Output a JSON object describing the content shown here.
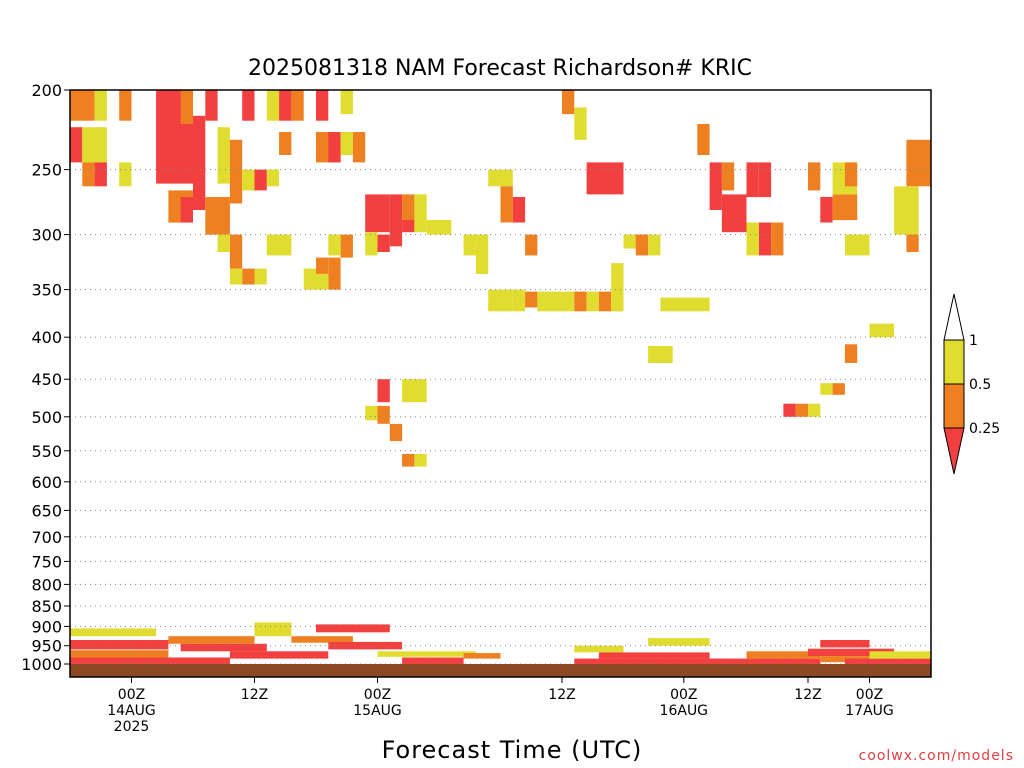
{
  "chart_data": {
    "type": "heatmap",
    "title": "2025081318 NAM Forecast Richardson# KRIC",
    "xlabel": "Forecast Time (UTC)",
    "ylabel": "",
    "credit": "coolwx.com/models",
    "y_scale": "log-pressure",
    "y_ticks": [
      200,
      250,
      300,
      350,
      400,
      450,
      500,
      550,
      600,
      650,
      700,
      750,
      800,
      850,
      900,
      950,
      1000
    ],
    "ylim": [
      200,
      1000
    ],
    "x_hours_range": [
      -5,
      65
    ],
    "x_ticks": [
      {
        "hour": 0,
        "lines": [
          "00Z",
          "14AUG",
          "2025"
        ]
      },
      {
        "hour": 10,
        "lines": [
          "12Z"
        ]
      },
      {
        "hour": 20,
        "lines": [
          "00Z",
          "15AUG"
        ]
      },
      {
        "hour": 35,
        "lines": [
          "12Z"
        ]
      },
      {
        "hour": 44.9,
        "lines": [
          "00Z",
          "16AUG"
        ]
      },
      {
        "hour": 55,
        "lines": [
          "12Z"
        ]
      },
      {
        "hour": 60,
        "lines": [
          "00Z",
          "17AUG"
        ]
      }
    ],
    "grid": "dotted horizontal lines",
    "legend": {
      "placement": "right",
      "levels": [
        "1",
        "0.5",
        "0.25"
      ],
      "bins": [
        {
          "range": "> 1",
          "color": "#ffffff"
        },
        {
          "range": "0.5 - 1",
          "color": "#e0dc30"
        },
        {
          "range": "0.25 - 0.5",
          "color": "#ee8022"
        },
        {
          "range": "< 0.25",
          "color": "#f24040"
        }
      ]
    },
    "cells": [
      {
        "t0": -5,
        "t1": -3,
        "p0": 200,
        "p1": 218,
        "bin": "orange"
      },
      {
        "t0": -3,
        "t1": -2,
        "p0": 200,
        "p1": 218,
        "bin": "yellow"
      },
      {
        "t0": -1,
        "t1": 0,
        "p0": 200,
        "p1": 218,
        "bin": "orange"
      },
      {
        "t0": 2,
        "t1": 5,
        "p0": 200,
        "p1": 260,
        "bin": "red"
      },
      {
        "t0": 4,
        "t1": 5,
        "p0": 200,
        "p1": 220,
        "bin": "orange"
      },
      {
        "t0": 5,
        "t1": 6,
        "p0": 215,
        "p1": 280,
        "bin": "red"
      },
      {
        "t0": 6,
        "t1": 7,
        "p0": 200,
        "p1": 218,
        "bin": "red"
      },
      {
        "t0": 7,
        "t1": 8,
        "p0": 222,
        "p1": 260,
        "bin": "yellow"
      },
      {
        "t0": 8,
        "t1": 9,
        "p0": 230,
        "p1": 275,
        "bin": "orange"
      },
      {
        "t0": 9,
        "t1": 10,
        "p0": 200,
        "p1": 218,
        "bin": "red"
      },
      {
        "t0": 11,
        "t1": 12,
        "p0": 200,
        "p1": 218,
        "bin": "yellow"
      },
      {
        "t0": 12,
        "t1": 13,
        "p0": 200,
        "p1": 218,
        "bin": "red"
      },
      {
        "t0": 13,
        "t1": 14,
        "p0": 200,
        "p1": 218,
        "bin": "orange"
      },
      {
        "t0": 15,
        "t1": 16,
        "p0": 200,
        "p1": 218,
        "bin": "red"
      },
      {
        "t0": 17,
        "t1": 18,
        "p0": 200,
        "p1": 214,
        "bin": "yellow"
      },
      {
        "t0": -5,
        "t1": -4,
        "p0": 222,
        "p1": 245,
        "bin": "red"
      },
      {
        "t0": -4,
        "t1": -2,
        "p0": 222,
        "p1": 245,
        "bin": "yellow"
      },
      {
        "t0": -4,
        "t1": -3,
        "p0": 245,
        "p1": 262,
        "bin": "orange"
      },
      {
        "t0": -3,
        "t1": -2,
        "p0": 245,
        "p1": 262,
        "bin": "red"
      },
      {
        "t0": -1,
        "t1": 0,
        "p0": 245,
        "p1": 262,
        "bin": "yellow"
      },
      {
        "t0": 3,
        "t1": 5,
        "p0": 265,
        "p1": 290,
        "bin": "orange"
      },
      {
        "t0": 4,
        "t1": 5,
        "p0": 270,
        "p1": 290,
        "bin": "red"
      },
      {
        "t0": 6,
        "t1": 8,
        "p0": 270,
        "p1": 300,
        "bin": "orange"
      },
      {
        "t0": 8,
        "t1": 9,
        "p0": 300,
        "p1": 330,
        "bin": "orange"
      },
      {
        "t0": 9,
        "t1": 10,
        "p0": 330,
        "p1": 345,
        "bin": "orange"
      },
      {
        "t0": 8,
        "t1": 9,
        "p0": 330,
        "p1": 345,
        "bin": "yellow"
      },
      {
        "t0": 10,
        "t1": 11,
        "p0": 330,
        "p1": 345,
        "bin": "yellow"
      },
      {
        "t0": 7,
        "t1": 8,
        "p0": 300,
        "p1": 315,
        "bin": "yellow"
      },
      {
        "t0": 10,
        "t1": 11,
        "p0": 250,
        "p1": 265,
        "bin": "red"
      },
      {
        "t0": 9,
        "t1": 10,
        "p0": 250,
        "p1": 265,
        "bin": "yellow"
      },
      {
        "t0": 11,
        "t1": 12,
        "p0": 250,
        "p1": 262,
        "bin": "yellow"
      },
      {
        "t0": 12,
        "t1": 13,
        "p0": 225,
        "p1": 240,
        "bin": "orange"
      },
      {
        "t0": 11,
        "t1": 13,
        "p0": 300,
        "p1": 318,
        "bin": "yellow"
      },
      {
        "t0": 14,
        "t1": 15,
        "p0": 330,
        "p1": 350,
        "bin": "yellow"
      },
      {
        "t0": 15,
        "t1": 16,
        "p0": 320,
        "p1": 335,
        "bin": "orange"
      },
      {
        "t0": 16,
        "t1": 17,
        "p0": 320,
        "p1": 350,
        "bin": "orange"
      },
      {
        "t0": 15,
        "t1": 16,
        "p0": 335,
        "p1": 350,
        "bin": "yellow"
      },
      {
        "t0": 15,
        "t1": 17,
        "p0": 225,
        "p1": 245,
        "bin": "orange"
      },
      {
        "t0": 16,
        "t1": 17,
        "p0": 225,
        "p1": 245,
        "bin": "red"
      },
      {
        "t0": 17,
        "t1": 18,
        "p0": 225,
        "p1": 240,
        "bin": "yellow"
      },
      {
        "t0": 18,
        "t1": 19,
        "p0": 225,
        "p1": 245,
        "bin": "orange"
      },
      {
        "t0": 17,
        "t1": 18,
        "p0": 300,
        "p1": 320,
        "bin": "orange"
      },
      {
        "t0": 16,
        "t1": 17,
        "p0": 300,
        "p1": 318,
        "bin": "yellow"
      },
      {
        "t0": 19,
        "t1": 21,
        "p0": 268,
        "p1": 298,
        "bin": "red"
      },
      {
        "t0": 21,
        "t1": 22,
        "p0": 268,
        "p1": 310,
        "bin": "red"
      },
      {
        "t0": 20,
        "t1": 21,
        "p0": 300,
        "p1": 315,
        "bin": "red"
      },
      {
        "t0": 22,
        "t1": 23,
        "p0": 268,
        "p1": 288,
        "bin": "orange"
      },
      {
        "t0": 22,
        "t1": 23,
        "p0": 288,
        "p1": 298,
        "bin": "red"
      },
      {
        "t0": 23,
        "t1": 24,
        "p0": 268,
        "p1": 298,
        "bin": "yellow"
      },
      {
        "t0": 19,
        "t1": 20,
        "p0": 298,
        "p1": 318,
        "bin": "yellow"
      },
      {
        "t0": 24,
        "t1": 26,
        "p0": 288,
        "p1": 300,
        "bin": "yellow"
      },
      {
        "t0": 27,
        "t1": 28,
        "p0": 300,
        "p1": 318,
        "bin": "yellow"
      },
      {
        "t0": 28,
        "t1": 29,
        "p0": 300,
        "p1": 335,
        "bin": "yellow"
      },
      {
        "t0": 29,
        "t1": 31,
        "p0": 250,
        "p1": 262,
        "bin": "yellow"
      },
      {
        "t0": 30,
        "t1": 31,
        "p0": 262,
        "p1": 290,
        "bin": "orange"
      },
      {
        "t0": 31,
        "t1": 32,
        "p0": 270,
        "p1": 290,
        "bin": "red"
      },
      {
        "t0": 32,
        "t1": 33,
        "p0": 300,
        "p1": 318,
        "bin": "orange"
      },
      {
        "t0": 29,
        "t1": 31,
        "p0": 350,
        "p1": 372,
        "bin": "yellow"
      },
      {
        "t0": 31,
        "t1": 32,
        "p0": 350,
        "p1": 372,
        "bin": "yellow"
      },
      {
        "t0": 32,
        "t1": 33,
        "p0": 352,
        "p1": 368,
        "bin": "orange"
      },
      {
        "t0": 33,
        "t1": 36,
        "p0": 352,
        "p1": 372,
        "bin": "yellow"
      },
      {
        "t0": 36,
        "t1": 37,
        "p0": 352,
        "p1": 372,
        "bin": "orange"
      },
      {
        "t0": 37,
        "t1": 38,
        "p0": 352,
        "p1": 372,
        "bin": "yellow"
      },
      {
        "t0": 38,
        "t1": 39,
        "p0": 352,
        "p1": 372,
        "bin": "orange"
      },
      {
        "t0": 39,
        "t1": 40,
        "p0": 325,
        "p1": 372,
        "bin": "yellow"
      },
      {
        "t0": 36,
        "t1": 37,
        "p0": 210,
        "p1": 230,
        "bin": "yellow"
      },
      {
        "t0": 35,
        "t1": 36,
        "p0": 200,
        "p1": 214,
        "bin": "orange"
      },
      {
        "t0": 37,
        "t1": 40,
        "p0": 245,
        "p1": 268,
        "bin": "red"
      },
      {
        "t0": 40,
        "t1": 42,
        "p0": 300,
        "p1": 312,
        "bin": "yellow"
      },
      {
        "t0": 41,
        "t1": 42,
        "p0": 300,
        "p1": 318,
        "bin": "orange"
      },
      {
        "t0": 42,
        "t1": 43,
        "p0": 300,
        "p1": 318,
        "bin": "yellow"
      },
      {
        "t0": 43,
        "t1": 47,
        "p0": 358,
        "p1": 372,
        "bin": "yellow"
      },
      {
        "t0": 46,
        "t1": 47,
        "p0": 220,
        "p1": 240,
        "bin": "orange"
      },
      {
        "t0": 47,
        "t1": 48,
        "p0": 245,
        "p1": 280,
        "bin": "red"
      },
      {
        "t0": 48,
        "t1": 49,
        "p0": 245,
        "p1": 265,
        "bin": "orange"
      },
      {
        "t0": 48,
        "t1": 50,
        "p0": 268,
        "p1": 298,
        "bin": "red"
      },
      {
        "t0": 50,
        "t1": 51,
        "p0": 245,
        "p1": 270,
        "bin": "red"
      },
      {
        "t0": 51,
        "t1": 52,
        "p0": 245,
        "p1": 270,
        "bin": "red"
      },
      {
        "t0": 51,
        "t1": 52,
        "p0": 290,
        "p1": 318,
        "bin": "red"
      },
      {
        "t0": 50,
        "t1": 51,
        "p0": 290,
        "p1": 318,
        "bin": "yellow"
      },
      {
        "t0": 52,
        "t1": 53,
        "p0": 290,
        "p1": 318,
        "bin": "orange"
      },
      {
        "t0": 55,
        "t1": 56,
        "p0": 245,
        "p1": 265,
        "bin": "orange"
      },
      {
        "t0": 56,
        "t1": 57,
        "p0": 270,
        "p1": 290,
        "bin": "red"
      },
      {
        "t0": 57,
        "t1": 59,
        "p0": 268,
        "p1": 288,
        "bin": "orange"
      },
      {
        "t0": 57,
        "t1": 59,
        "p0": 245,
        "p1": 268,
        "bin": "yellow"
      },
      {
        "t0": 58,
        "t1": 59,
        "p0": 245,
        "p1": 262,
        "bin": "orange"
      },
      {
        "t0": 63,
        "t1": 65,
        "p0": 230,
        "p1": 262,
        "bin": "orange"
      },
      {
        "t0": 62,
        "t1": 64,
        "p0": 262,
        "p1": 300,
        "bin": "yellow"
      },
      {
        "t0": 63,
        "t1": 64,
        "p0": 300,
        "p1": 315,
        "bin": "orange"
      },
      {
        "t0": 58,
        "t1": 60,
        "p0": 300,
        "p1": 318,
        "bin": "yellow"
      },
      {
        "t0": 60,
        "t1": 62,
        "p0": 385,
        "p1": 400,
        "bin": "yellow"
      },
      {
        "t0": 58,
        "t1": 59,
        "p0": 408,
        "p1": 430,
        "bin": "orange"
      },
      {
        "t0": 42,
        "t1": 44,
        "p0": 410,
        "p1": 430,
        "bin": "yellow"
      },
      {
        "t0": 20,
        "t1": 21,
        "p0": 450,
        "p1": 480,
        "bin": "red"
      },
      {
        "t0": 22,
        "t1": 24,
        "p0": 450,
        "p1": 480,
        "bin": "yellow"
      },
      {
        "t0": 19,
        "t1": 20,
        "p0": 485,
        "p1": 505,
        "bin": "yellow"
      },
      {
        "t0": 20,
        "t1": 21,
        "p0": 485,
        "p1": 510,
        "bin": "orange"
      },
      {
        "t0": 21,
        "t1": 22,
        "p0": 510,
        "p1": 535,
        "bin": "orange"
      },
      {
        "t0": 22,
        "t1": 23,
        "p0": 555,
        "p1": 575,
        "bin": "orange"
      },
      {
        "t0": 23,
        "t1": 24,
        "p0": 555,
        "p1": 575,
        "bin": "yellow"
      },
      {
        "t0": 53,
        "t1": 54,
        "p0": 482,
        "p1": 500,
        "bin": "red"
      },
      {
        "t0": 54,
        "t1": 55,
        "p0": 482,
        "p1": 500,
        "bin": "orange"
      },
      {
        "t0": 55,
        "t1": 56,
        "p0": 482,
        "p1": 500,
        "bin": "yellow"
      },
      {
        "t0": 56,
        "t1": 57,
        "p0": 455,
        "p1": 470,
        "bin": "yellow"
      },
      {
        "t0": 57,
        "t1": 58,
        "p0": 455,
        "p1": 470,
        "bin": "orange"
      },
      {
        "t0": -5,
        "t1": 2,
        "p0": 905,
        "p1": 925,
        "bin": "yellow"
      },
      {
        "t0": -5,
        "t1": 3,
        "p0": 935,
        "p1": 960,
        "bin": "red"
      },
      {
        "t0": -5,
        "t1": 3,
        "p0": 962,
        "p1": 982,
        "bin": "orange"
      },
      {
        "t0": -5,
        "t1": 8,
        "p0": 982,
        "p1": 1000,
        "bin": "red"
      },
      {
        "t0": 3,
        "t1": 10,
        "p0": 925,
        "p1": 945,
        "bin": "orange"
      },
      {
        "t0": 4,
        "t1": 11,
        "p0": 945,
        "p1": 965,
        "bin": "red"
      },
      {
        "t0": 8,
        "t1": 16,
        "p0": 965,
        "p1": 985,
        "bin": "red"
      },
      {
        "t0": 10,
        "t1": 13,
        "p0": 890,
        "p1": 925,
        "bin": "yellow"
      },
      {
        "t0": 13,
        "t1": 18,
        "p0": 925,
        "p1": 942,
        "bin": "orange"
      },
      {
        "t0": 15,
        "t1": 21,
        "p0": 895,
        "p1": 915,
        "bin": "red"
      },
      {
        "t0": 16,
        "t1": 22,
        "p0": 940,
        "p1": 960,
        "bin": "red"
      },
      {
        "t0": 20,
        "t1": 28,
        "p0": 965,
        "p1": 980,
        "bin": "yellow"
      },
      {
        "t0": 22,
        "t1": 27,
        "p0": 982,
        "p1": 1000,
        "bin": "red"
      },
      {
        "t0": 27,
        "t1": 30,
        "p0": 970,
        "p1": 985,
        "bin": "orange"
      },
      {
        "t0": 36,
        "t1": 40,
        "p0": 950,
        "p1": 968,
        "bin": "yellow"
      },
      {
        "t0": 38,
        "t1": 47,
        "p0": 968,
        "p1": 985,
        "bin": "red"
      },
      {
        "t0": 36,
        "t1": 48,
        "p0": 985,
        "p1": 1000,
        "bin": "red"
      },
      {
        "t0": 42,
        "t1": 47,
        "p0": 930,
        "p1": 950,
        "bin": "yellow"
      },
      {
        "t0": 47,
        "t1": 56,
        "p0": 985,
        "p1": 1000,
        "bin": "red"
      },
      {
        "t0": 50,
        "t1": 56,
        "p0": 965,
        "p1": 985,
        "bin": "orange"
      },
      {
        "t0": 56,
        "t1": 60,
        "p0": 935,
        "p1": 955,
        "bin": "red"
      },
      {
        "t0": 55,
        "t1": 62,
        "p0": 958,
        "p1": 978,
        "bin": "red"
      },
      {
        "t0": 56,
        "t1": 60,
        "p0": 978,
        "p1": 995,
        "bin": "orange"
      },
      {
        "t0": 58,
        "t1": 65,
        "p0": 985,
        "p1": 1000,
        "bin": "red"
      },
      {
        "t0": 60,
        "t1": 65,
        "p0": 965,
        "p1": 985,
        "bin": "yellow"
      }
    ]
  }
}
